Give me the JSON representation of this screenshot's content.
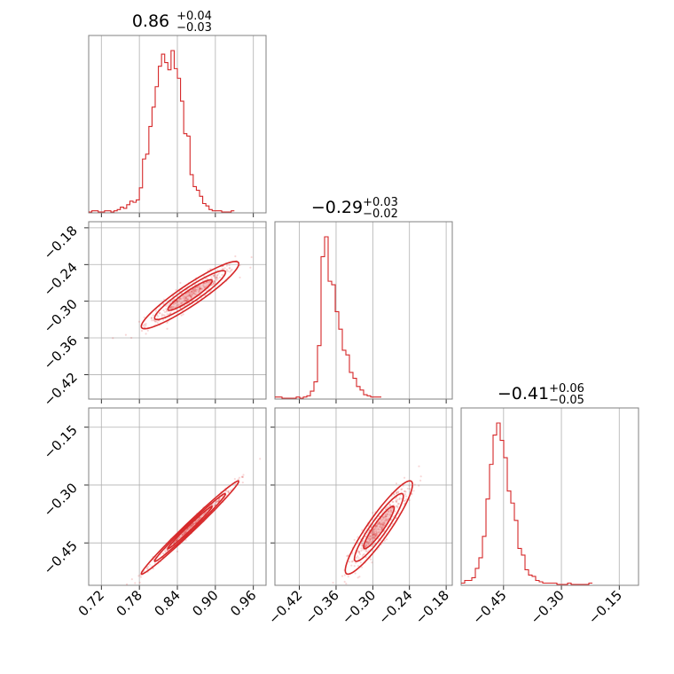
{
  "chart_data": {
    "type": "corner",
    "color": "#d62728",
    "params": [
      {
        "median": "0.86",
        "plus": "+0.04",
        "minus": "−0.03",
        "range": [
          0.7,
          0.98
        ],
        "ticks": [
          0.72,
          0.78,
          0.84,
          0.9,
          0.96
        ],
        "tick_labels": [
          "0.72",
          "0.78",
          "0.84",
          "0.90",
          "0.96"
        ]
      },
      {
        "median": "−0.29",
        "plus": "+0.03",
        "minus": "−0.02",
        "range": [
          -0.46,
          -0.17
        ],
        "ticks": [
          -0.42,
          -0.36,
          -0.3,
          -0.24,
          -0.18
        ],
        "tick_labels": [
          "−0.42",
          "−0.36",
          "−0.30",
          "−0.24",
          "−0.18"
        ]
      },
      {
        "median": "−0.41",
        "plus": "+0.06",
        "minus": "−0.05",
        "range": [
          -0.56,
          -0.1
        ],
        "ticks": [
          -0.45,
          -0.3,
          -0.15
        ],
        "tick_labels": [
          "−0.45",
          "−0.30",
          "−0.15"
        ]
      }
    ],
    "histograms": [
      {
        "bin_width": 0.005,
        "start": 0.7,
        "counts": [
          0,
          1,
          1,
          0,
          0,
          1,
          1,
          0,
          1,
          2,
          4,
          3,
          6,
          9,
          8,
          10,
          20,
          44,
          48,
          71,
          87,
          104,
          121,
          131,
          124,
          118,
          134,
          119,
          111,
          92,
          65,
          63,
          31,
          21,
          18,
          13,
          7,
          5,
          2,
          1,
          1,
          1,
          0,
          0,
          0,
          1
        ]
      },
      {
        "bin_width": 0.0058,
        "start": -0.46,
        "counts": [
          1,
          1,
          0,
          0,
          0,
          0,
          1,
          0,
          1,
          2,
          6,
          14,
          45,
          121,
          138,
          100,
          97,
          74,
          59,
          41,
          37,
          22,
          17,
          10,
          7,
          3,
          2,
          1,
          1,
          1
        ]
      },
      {
        "bin_width": 0.0092,
        "start": -0.56,
        "counts": [
          1,
          3,
          3,
          5,
          12,
          20,
          36,
          64,
          90,
          112,
          121,
          108,
          95,
          70,
          61,
          48,
          27,
          22,
          11,
          7,
          6,
          3,
          2,
          1,
          1,
          1,
          1,
          0,
          0,
          0,
          1,
          0,
          0,
          0,
          0,
          0,
          1
        ]
      }
    ],
    "correlations": {
      "p1_p0": {
        "x_mean": 0.86,
        "y_mean": -0.29,
        "x_sd": 0.035,
        "y_sd": 0.025,
        "rho": 0.93
      },
      "p2_p0": {
        "x_mean": 0.86,
        "y_mean": -0.41,
        "x_sd": 0.035,
        "y_sd": 0.055,
        "rho": 0.99
      },
      "p2_p1": {
        "x_mean": -0.29,
        "y_mean": -0.41,
        "x_sd": 0.025,
        "y_sd": 0.055,
        "rho": 0.92
      }
    },
    "grid": true
  }
}
